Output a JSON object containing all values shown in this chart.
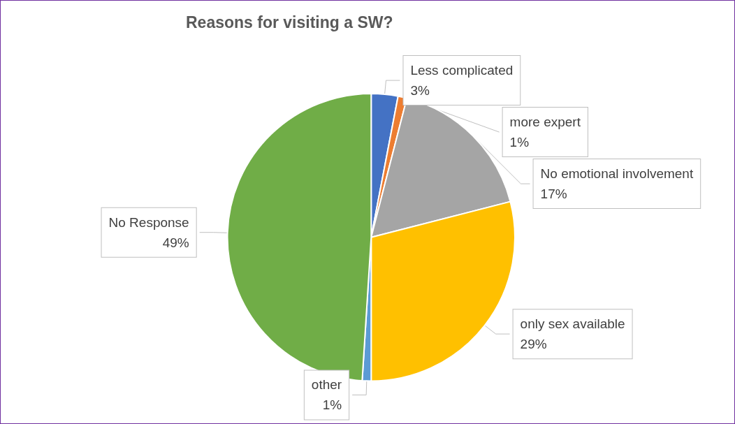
{
  "chart_data": {
    "type": "pie",
    "title": "Reasons for visiting a SW?",
    "categories": [
      "Less complicated",
      "more expert",
      "No emotional involvement",
      "only sex available",
      "other",
      "No Response"
    ],
    "values": [
      3,
      1,
      17,
      29,
      1,
      49
    ],
    "value_labels": [
      "3%",
      "1%",
      "17%",
      "29%",
      "1%",
      "49%"
    ],
    "colors": [
      "#4472c4",
      "#ed7d31",
      "#a5a5a5",
      "#ffc000",
      "#5b9bd5",
      "#70ad47"
    ],
    "legend": false
  }
}
